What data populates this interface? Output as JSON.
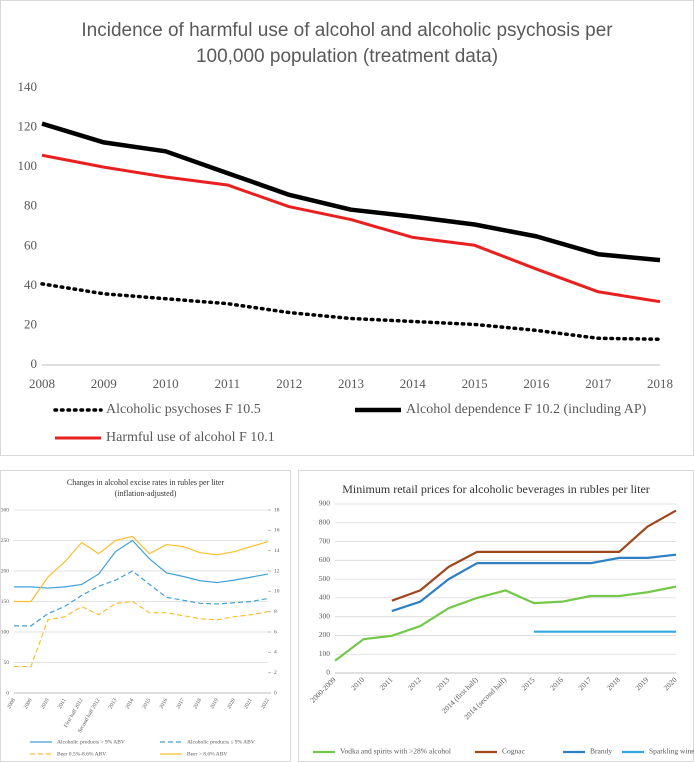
{
  "chart_data": [
    {
      "type": "line",
      "title": "Incidence of harmful use of alcohol and alcoholic psychosis per 100,000 population (treatment data)",
      "categories": [
        "2008",
        "2009",
        "2010",
        "2011",
        "2012",
        "2013",
        "2014",
        "2015",
        "2016",
        "2017",
        "2018"
      ],
      "ylim": [
        0,
        140
      ],
      "yticks": [
        0,
        20,
        40,
        60,
        80,
        100,
        120,
        140
      ],
      "grid": false,
      "series": [
        {
          "name": "Alcoholic psychoses F 10.5",
          "color": "#000000",
          "dash": "dotted",
          "values": [
            41,
            36,
            33.5,
            31,
            26.5,
            23.5,
            22,
            20.5,
            17.5,
            13.5,
            13
          ]
        },
        {
          "name": "Alcohol dependence  F 10.2 (including AP)",
          "color": "#000000",
          "dash": "solid",
          "values": [
            122,
            112.5,
            108,
            97,
            86,
            78.5,
            75,
            71,
            65,
            56,
            53
          ]
        },
        {
          "name": "Harmful use of alcohol F 10.1",
          "color": "#e8201f",
          "dash": "solid",
          "values": [
            106,
            100,
            95,
            91,
            80,
            73.5,
            64.5,
            60.5,
            48.5,
            37,
            32
          ]
        }
      ]
    },
    {
      "type": "line",
      "title": "Changes in alcohol excise rates in rubles per liter",
      "subtitle": "(inflation-adjusted)",
      "categories": [
        "2008",
        "2009",
        "2010",
        "2011",
        "First half 2012",
        "Second half 2012",
        "2013",
        "2014",
        "2015",
        "2016",
        "2017",
        "2018",
        "2019",
        "2020",
        "2021",
        "2022"
      ],
      "ylim": [
        0,
        300
      ],
      "yticks": [
        0,
        50,
        100,
        150,
        200,
        250,
        300
      ],
      "y2lim": [
        0,
        18
      ],
      "y2ticks": [
        0,
        2,
        4,
        6,
        8,
        10,
        12,
        14,
        16,
        18
      ],
      "grid": true,
      "series": [
        {
          "name": "Alcoholic products > 9% ABV",
          "color": "#3fa0d8",
          "dash": "solid",
          "values": [
            174,
            174,
            172,
            174,
            178,
            195,
            232,
            250,
            220,
            197,
            191,
            184,
            181,
            185,
            190,
            195
          ]
        },
        {
          "name": "Alcoholic products ≤ 9% ABV",
          "color": "#3fa0d8",
          "dash": "dashed",
          "values": [
            110,
            110,
            130,
            142,
            160,
            175,
            185,
            200,
            178,
            157,
            152,
            147,
            146,
            148,
            150,
            155
          ]
        },
        {
          "name": "Beer 0.5%-8.6% ABV",
          "color": "#fbbf2e",
          "dash": "dashed",
          "axis": "y2",
          "values": [
            2.6,
            2.6,
            7.2,
            7.5,
            8.5,
            7.7,
            8.8,
            9.0,
            7.9,
            7.9,
            7.6,
            7.3,
            7.2,
            7.5,
            7.7,
            8.0
          ]
        },
        {
          "name": "Beer > 8.6% ABV",
          "color": "#fbbf2e",
          "dash": "solid",
          "axis": "y2",
          "values": [
            9,
            9,
            11.4,
            12.9,
            14.8,
            13.7,
            15,
            15.4,
            13.7,
            14.6,
            14.4,
            13.8,
            13.6,
            13.9,
            14.4,
            14.9
          ]
        }
      ]
    },
    {
      "type": "line",
      "title": "Minimum retail prices for alcoholic beverages in rubles per liter",
      "categories": [
        "2000-2009",
        "2010",
        "2011",
        "2012",
        "2013",
        "2014 (first half)",
        "2014 (second half)",
        "2015",
        "2016",
        "2017",
        "2018",
        "2019",
        "2020"
      ],
      "ylim": [
        0,
        900
      ],
      "yticks": [
        0,
        100,
        200,
        300,
        400,
        500,
        600,
        700,
        800,
        900
      ],
      "grid": true,
      "series": [
        {
          "name": "Vodka and spirits with >28% alcohol",
          "color": "#74c84a",
          "dash": "solid",
          "values": [
            65,
            180,
            198,
            250,
            345,
            400,
            440,
            372,
            380,
            410,
            410,
            430,
            460
          ]
        },
        {
          "name": "Cognac",
          "color": "#a0461e",
          "dash": "solid",
          "values": [
            null,
            null,
            385,
            440,
            565,
            645,
            645,
            645,
            645,
            645,
            645,
            780,
            865
          ]
        },
        {
          "name": "Brandy",
          "color": "#2f7fc4",
          "dash": "solid",
          "values": [
            null,
            null,
            330,
            380,
            500,
            585,
            585,
            585,
            585,
            585,
            613,
            613,
            630
          ]
        },
        {
          "name": "Sparkling wine",
          "color": "#32a8e0",
          "dash": "solid",
          "values": [
            null,
            null,
            null,
            null,
            null,
            null,
            null,
            220,
            220,
            220,
            220,
            220,
            220
          ]
        }
      ]
    }
  ]
}
